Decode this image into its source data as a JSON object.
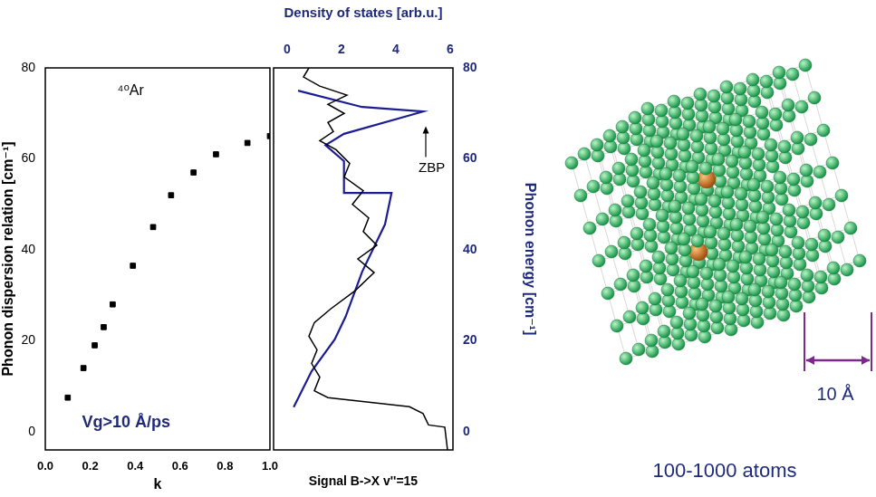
{
  "chart_data": [
    {
      "type": "scatter",
      "xlabel": "k",
      "ylabel": "Phonon dispersion relation [cm⁻¹]",
      "x": [
        0.1,
        0.17,
        0.22,
        0.26,
        0.3,
        0.39,
        0.48,
        0.56,
        0.66,
        0.76,
        0.9,
        1.0
      ],
      "values": [
        7.5,
        14,
        19,
        23,
        28,
        36.5,
        45,
        52,
        57,
        61,
        63.5,
        65
      ],
      "color": "#000000",
      "marker": "square",
      "xlim": [
        0,
        1
      ],
      "xticks": [
        {
          "value": 0,
          "label": "0.0"
        },
        0.2,
        0.4,
        0.6,
        0.8,
        {
          "value": 1,
          "label": "1.0"
        }
      ],
      "ylim": [
        -4,
        80
      ],
      "yticks": [
        0,
        20,
        40,
        60,
        80
      ],
      "grid": false,
      "annotations": [
        {
          "text": "⁴⁰Ar",
          "x": 0.38,
          "y": 75
        },
        {
          "text": "Vg>10 Å/ps",
          "x": 0.36,
          "y": 2
        }
      ]
    },
    {
      "type": "line",
      "xlabel": "Density of states [arb.u.]",
      "x2label": "Signal B->X v''=15",
      "ylabel": "Phonon energy [cm⁻¹]",
      "xlim": [
        -0.5,
        6.1
      ],
      "xticks": [
        0,
        2,
        4,
        6
      ],
      "ylim": [
        -4,
        80
      ],
      "yticks": [
        0,
        20,
        40,
        60,
        80
      ],
      "grid": false,
      "series": [
        {
          "color": "#000000",
          "x": [
            5.9,
            5.8,
            5.2,
            5.0,
            4.5,
            3.0,
            1.5,
            1.0,
            1.2,
            0.9,
            1.1,
            0.8,
            1.0,
            1.6,
            2.5,
            3.2,
            2.6,
            3.3,
            2.8,
            3.0,
            2.4,
            2.8,
            2.1,
            2.3,
            1.8,
            1.2,
            1.7,
            1.5,
            2.1,
            1.5,
            2.2,
            1.2,
            0.6,
            0.8
          ],
          "values": [
            -4,
            1,
            1.5,
            4,
            5.5,
            6.5,
            7.5,
            9,
            12,
            15,
            18,
            21,
            24,
            27,
            31,
            35,
            38,
            41,
            44,
            47,
            50,
            53,
            56,
            59,
            62,
            64,
            66,
            68,
            70,
            72,
            74,
            76,
            78,
            80
          ]
        },
        {
          "color": "#1c1c94",
          "x": [
            0.24,
            0.9,
            1.75,
            2.15,
            2.76,
            3.6,
            3.84,
            2.09,
            2.09,
            1.41,
            2.09,
            5.0,
            2.76,
            0.4
          ],
          "values": [
            5.4,
            13.3,
            20.3,
            25.3,
            35.2,
            45.6,
            52.5,
            52.5,
            59.5,
            63,
            65.5,
            70.4,
            71.4,
            75
          ]
        }
      ],
      "annotations": [
        {
          "text": "ZBP",
          "x": 5.1,
          "y": 58
        }
      ]
    }
  ],
  "illustration": {
    "scale_label": "10 Å",
    "caption": "100-1000 atoms"
  }
}
